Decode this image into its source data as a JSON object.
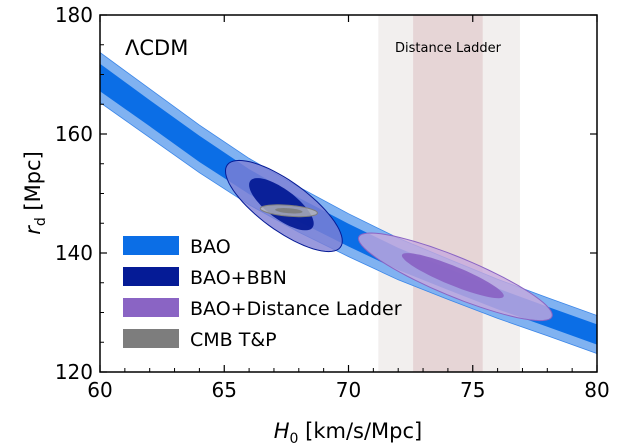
{
  "chart_data": {
    "type": "contour",
    "xlabel_main": "H",
    "xlabel_sub": "0",
    "xlabel_rest": " [km/s/Mpc]",
    "ylabel_main": "r",
    "ylabel_sub": "d",
    "ylabel_rest": " [Mpc]",
    "xlim": [
      60,
      80
    ],
    "ylim": [
      120,
      180
    ],
    "xticks": [
      60,
      65,
      70,
      75,
      80
    ],
    "yticks": [
      120,
      140,
      160,
      180
    ],
    "model_label": "ΛCDM",
    "grid": false,
    "legend_position": "lower-left",
    "distance_ladder": {
      "label": "Distance Ladder",
      "inner": [
        72.6,
        75.4
      ],
      "outer": [
        71.2,
        76.9
      ],
      "inner_color": "#e6d5d6",
      "outer_color": "#f2efee"
    },
    "bao_band": {
      "x": [
        60,
        62,
        64,
        66,
        68,
        70,
        72,
        74,
        76,
        78,
        80
      ],
      "center": [
        169.5,
        163.5,
        157.5,
        152.0,
        147.3,
        143.0,
        139.0,
        135.6,
        132.3,
        129.3,
        126.3
      ],
      "half_width_68": [
        2.3,
        2.2,
        2.2,
        2.1,
        2.0,
        1.9,
        1.85,
        1.8,
        1.75,
        1.7,
        1.7
      ],
      "half_width_95": [
        4.2,
        4.1,
        4.0,
        3.9,
        3.8,
        3.6,
        3.5,
        3.4,
        3.3,
        3.2,
        3.2
      ]
    },
    "series": [
      {
        "name": "BAO",
        "color_68": "#0b6ee6",
        "color_95": "#80b2f1"
      },
      {
        "name": "BAO+BBN",
        "color_68": "#051b96",
        "color_95": "#7f80d4",
        "ellipse_95": {
          "cx": 67.4,
          "cy": 147.9,
          "sx": 2.35,
          "sy": 10.8,
          "slope": -2.5
        },
        "ellipse_68": {
          "cx": 67.3,
          "cy": 148.2,
          "sx": 1.3,
          "sy": 6.2,
          "slope": -2.5
        }
      },
      {
        "name": "BAO+Distance Ladder",
        "color_68": "#8a64c4",
        "color_95": "#c7a9dd",
        "ellipse_95": {
          "cx": 74.3,
          "cy": 136.0,
          "sx": 3.9,
          "sy": 10.0,
          "slope": -1.65
        },
        "ellipse_68": {
          "cx": 74.2,
          "cy": 136.2,
          "sx": 2.05,
          "sy": 5.1,
          "slope": -1.65
        }
      },
      {
        "name": "CMB T&P",
        "color_68": "#7d7d7d",
        "color_95": "#b9b9b9",
        "ellipse_95": {
          "cx": 67.6,
          "cy": 147.1,
          "sx": 1.15,
          "sy": 1.3,
          "slope": -0.33
        },
        "ellipse_68": {
          "cx": 67.6,
          "cy": 147.1,
          "sx": 0.55,
          "sy": 0.6,
          "slope": -0.33
        }
      }
    ]
  }
}
